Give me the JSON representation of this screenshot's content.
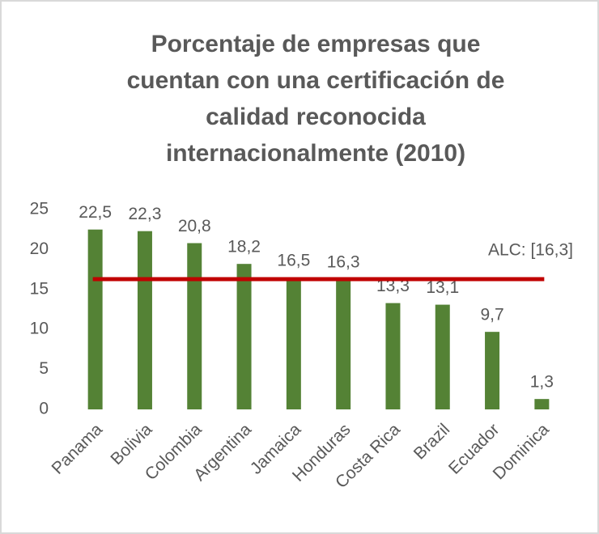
{
  "chart_data": {
    "type": "bar",
    "title": "Porcentaje de empresas que\ncuentan con una certificación de\ncalidad reconocida\ninternacionalmente (2010)",
    "categories": [
      "Panama",
      "Bolivia",
      "Colombia",
      "Argentina",
      "Jamaica",
      "Honduras",
      "Costa Rica",
      "Brazil",
      "Ecuador",
      "Dominica"
    ],
    "values": [
      22.5,
      22.3,
      20.8,
      18.2,
      16.5,
      16.3,
      13.3,
      13.1,
      9.7,
      1.3
    ],
    "value_labels": [
      "22,5",
      "22,3",
      "20,8",
      "18,2",
      "16,5",
      "16,3",
      "13,3",
      "13,1",
      "9,7",
      "1,3"
    ],
    "color": "#548235",
    "ylim": [
      0,
      25
    ],
    "yticks": [
      0,
      5,
      10,
      15,
      20,
      25
    ],
    "grid": false,
    "reference_line": {
      "value": 16.3,
      "label": "ALC: [16,3]",
      "color": "#c00000"
    }
  }
}
